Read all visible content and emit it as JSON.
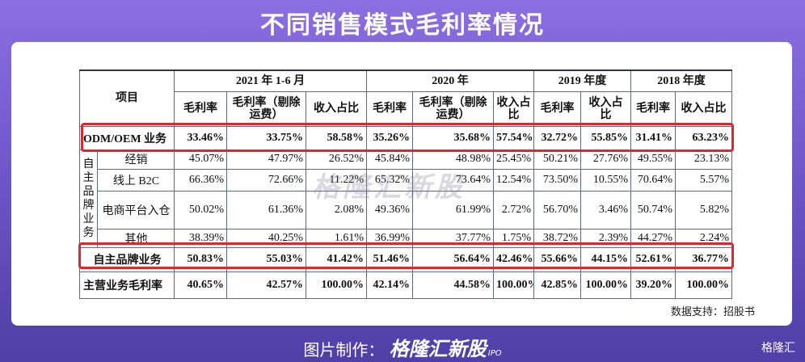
{
  "title": "不同销售模式毛利率情况",
  "table": {
    "corner": "项目",
    "group_label": "自主品牌业务",
    "periods": [
      "2021 年 1-6 月",
      "2020 年",
      "2019 年度",
      "2018 年度"
    ],
    "subheaders": [
      "毛利率",
      "毛利率（剔除运费）",
      "收入占比",
      "毛利率",
      "毛利率（剔除运费）",
      "收入占比",
      "毛利率",
      "收入占比",
      "毛利率",
      "收入占比"
    ],
    "rows": [
      {
        "label": "ODM/OEM 业务",
        "cells": [
          "33.46%",
          "33.75%",
          "58.58%",
          "35.26%",
          "35.68%",
          "57.54%",
          "32.72%",
          "55.85%",
          "31.41%",
          "63.23%"
        ]
      },
      {
        "label": "经销",
        "cells": [
          "45.07%",
          "47.97%",
          "26.52%",
          "45.84%",
          "48.98%",
          "25.45%",
          "50.21%",
          "27.76%",
          "49.55%",
          "23.13%"
        ]
      },
      {
        "label": "线上 B2C",
        "cells": [
          "66.36%",
          "72.66%",
          "11.22%",
          "65.32%",
          "73.64%",
          "12.54%",
          "73.50%",
          "10.55%",
          "70.64%",
          "5.57%"
        ]
      },
      {
        "label": "电商平台入仓",
        "cells": [
          "50.02%",
          "61.36%",
          "2.08%",
          "49.36%",
          "61.99%",
          "2.72%",
          "56.70%",
          "3.46%",
          "50.74%",
          "5.82%"
        ]
      },
      {
        "label": "其他",
        "cells": [
          "38.39%",
          "40.25%",
          "1.61%",
          "36.99%",
          "37.77%",
          "1.75%",
          "38.72%",
          "2.39%",
          "44.27%",
          "2.24%"
        ]
      },
      {
        "label": "自主品牌业务",
        "cells": [
          "50.83%",
          "55.03%",
          "41.42%",
          "51.46%",
          "56.64%",
          "42.46%",
          "55.66%",
          "44.15%",
          "52.61%",
          "36.77%"
        ]
      },
      {
        "label": "主营业务毛利率",
        "cells": [
          "40.65%",
          "42.57%",
          "100.00%",
          "42.14%",
          "44.58%",
          "100.00%",
          "42.85%",
          "100.00%",
          "39.20%",
          "100.00%"
        ]
      }
    ]
  },
  "watermark": "格隆汇新股",
  "source": "数据支持：招股书",
  "footer": {
    "made_by": "图片制作：",
    "logo": "格隆汇新股",
    "logo_tag": "IPO",
    "brand": "格隆汇"
  }
}
